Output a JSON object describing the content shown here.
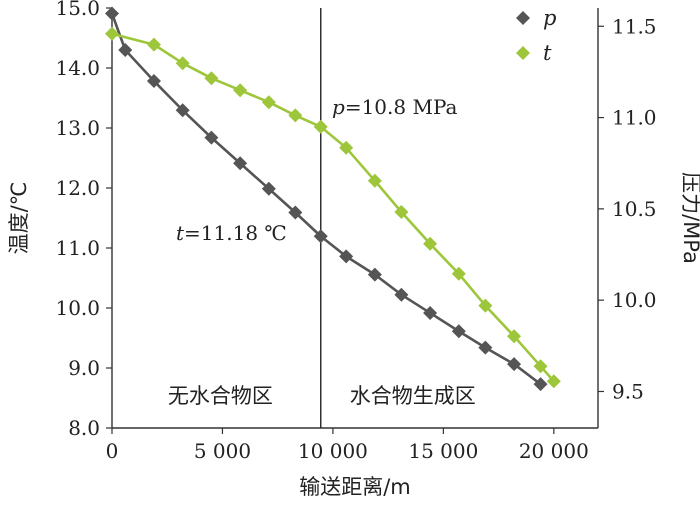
{
  "chart_data": {
    "type": "line",
    "xlabel": "输送距离/m",
    "ylabel_left": "温度/℃",
    "ylabel_right": "压力/MPa",
    "xlim": [
      0,
      22000
    ],
    "ylim_left": [
      8.0,
      15.0
    ],
    "ylim_right": [
      9.3,
      11.6
    ],
    "x_ticks": [
      0,
      5000,
      10000,
      15000,
      20000
    ],
    "x_tick_labels": [
      "0",
      "5 000",
      "10 000",
      "15 000",
      "20 000"
    ],
    "y_left_ticks": [
      8.0,
      9.0,
      10.0,
      11.0,
      12.0,
      13.0,
      14.0,
      15.0
    ],
    "y_left_tick_labels": [
      "8.0",
      "9.0",
      "10.0",
      "11.0",
      "12.0",
      "13.0",
      "14.0",
      "15.0"
    ],
    "y_right_ticks": [
      9.5,
      10.0,
      10.5,
      11.0,
      11.5
    ],
    "y_right_tick_labels": [
      "9.5",
      "10.0",
      "10.5",
      "11.0",
      "11.5"
    ],
    "divider_x": 9450,
    "legend_placement": "top-right",
    "series": [
      {
        "name": "p",
        "axis": "right",
        "color": "#555555",
        "marker": "diamond",
        "points": [
          [
            0,
            11.57
          ],
          [
            600,
            11.37
          ],
          [
            1900,
            11.2
          ],
          [
            3200,
            11.04
          ],
          [
            4500,
            10.89
          ],
          [
            5800,
            10.75
          ],
          [
            7100,
            10.61
          ],
          [
            8300,
            10.48
          ],
          [
            9450,
            10.35
          ],
          [
            10600,
            10.24
          ],
          [
            11900,
            10.14
          ],
          [
            13100,
            10.03
          ],
          [
            14400,
            9.93
          ],
          [
            15700,
            9.83
          ],
          [
            16900,
            9.74
          ],
          [
            18200,
            9.65
          ],
          [
            19400,
            9.54
          ]
        ]
      },
      {
        "name": "t",
        "axis": "left",
        "color": "#9dc63a",
        "marker": "diamond",
        "points": [
          [
            0,
            14.57
          ],
          [
            1900,
            14.39
          ],
          [
            3200,
            14.08
          ],
          [
            4500,
            13.83
          ],
          [
            5800,
            13.63
          ],
          [
            7100,
            13.43
          ],
          [
            8300,
            13.21
          ],
          [
            9450,
            13.02
          ],
          [
            10600,
            12.67
          ],
          [
            11900,
            12.12
          ],
          [
            13100,
            11.6
          ],
          [
            14400,
            11.07
          ],
          [
            15700,
            10.57
          ],
          [
            16900,
            10.04
          ],
          [
            18200,
            9.53
          ],
          [
            19400,
            9.03
          ],
          [
            20000,
            8.78
          ]
        ]
      }
    ],
    "annotations": [
      {
        "id": "p-note",
        "text": "p=10.8 MPa"
      },
      {
        "id": "t-note",
        "text": "t=11.18 ℃"
      }
    ],
    "regions": [
      "无水合物区",
      "水合物生成区"
    ]
  }
}
